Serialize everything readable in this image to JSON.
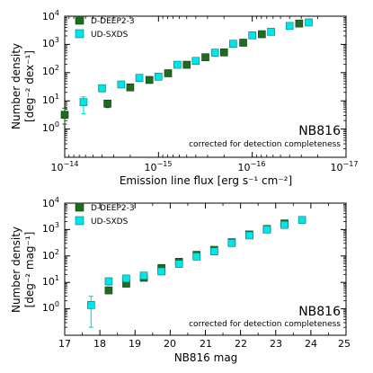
{
  "chart_data": [
    {
      "type": "scatter",
      "xlabel": "Emission line flux [erg s⁻¹ cm⁻²]",
      "ylabel_line1": "Number density",
      "ylabel_line2": "[deg⁻² dex⁻¹]",
      "xscale": "log",
      "yscale": "log",
      "xaxis_reversed": true,
      "xlim": [
        1e-14,
        1e-17
      ],
      "ylim": [
        0.1,
        10000
      ],
      "xticks": [
        {
          "value": 1e-14,
          "base": "10",
          "exp": "−14"
        },
        {
          "value": 1e-15,
          "base": "10",
          "exp": "−15"
        },
        {
          "value": 1e-16,
          "base": "10",
          "exp": "−16"
        },
        {
          "value": 1e-17,
          "base": "10",
          "exp": "−17"
        }
      ],
      "yticks": [
        {
          "value": 1,
          "base": "10",
          "exp": "0"
        },
        {
          "value": 10,
          "base": "10",
          "exp": "1"
        },
        {
          "value": 100,
          "base": "10",
          "exp": "2"
        },
        {
          "value": 1000,
          "base": "10",
          "exp": "3"
        },
        {
          "value": 10000,
          "base": "10",
          "exp": "4"
        }
      ],
      "annotation_title": "NB816",
      "annotation_subtitle": "corrected for detection completeness",
      "legend_position": "top-left",
      "series": [
        {
          "name": "D-DEEP2-3",
          "marker": "square",
          "color": "#1f6b1f",
          "points": [
            {
              "x": 1e-14,
              "y": 3.2,
              "ylo": 1.5,
              "yhi": 5.5
            },
            {
              "x": 3.5e-15,
              "y": 8.0,
              "ylo": 5.8,
              "yhi": 10.5
            },
            {
              "x": 2e-15,
              "y": 30,
              "ylo": 25,
              "yhi": 36
            },
            {
              "x": 1.25e-15,
              "y": 55,
              "ylo": 48,
              "yhi": 63
            },
            {
              "x": 7.9e-16,
              "y": 95,
              "ylo": 85,
              "yhi": 106
            },
            {
              "x": 5e-16,
              "y": 190,
              "ylo": 175,
              "yhi": 205
            },
            {
              "x": 3.16e-16,
              "y": 350,
              "ylo": 330,
              "yhi": 372
            },
            {
              "x": 2e-16,
              "y": 520,
              "ylo": 495,
              "yhi": 547
            },
            {
              "x": 1.25e-16,
              "y": 1150,
              "ylo": 1100,
              "yhi": 1200
            },
            {
              "x": 7.9e-17,
              "y": 2300,
              "ylo": 2220,
              "yhi": 2380
            },
            {
              "x": 3.16e-17,
              "y": 5500,
              "ylo": 5380,
              "yhi": 5620
            }
          ]
        },
        {
          "name": "UD-SXDS",
          "marker": "square",
          "color": "#00e5e5",
          "points": [
            {
              "x": 6.3e-15,
              "y": 9.0,
              "ylo": 3.5,
              "yhi": 14
            },
            {
              "x": 4e-15,
              "y": 28,
              "ylo": 21,
              "yhi": 35
            },
            {
              "x": 2.5e-15,
              "y": 38,
              "ylo": 31,
              "yhi": 45
            },
            {
              "x": 1.6e-15,
              "y": 65,
              "ylo": 56,
              "yhi": 74
            },
            {
              "x": 1e-15,
              "y": 72,
              "ylo": 63,
              "yhi": 81
            },
            {
              "x": 6.3e-16,
              "y": 190,
              "ylo": 173,
              "yhi": 207
            },
            {
              "x": 4e-16,
              "y": 260,
              "ylo": 241,
              "yhi": 279
            },
            {
              "x": 2.5e-16,
              "y": 510,
              "ylo": 483,
              "yhi": 537
            },
            {
              "x": 1.6e-16,
              "y": 1050,
              "ylo": 1010,
              "yhi": 1090
            },
            {
              "x": 1e-16,
              "y": 2100,
              "ylo": 2040,
              "yhi": 2160
            },
            {
              "x": 6.3e-17,
              "y": 2800,
              "ylo": 2730,
              "yhi": 2870
            },
            {
              "x": 4e-17,
              "y": 4500,
              "ylo": 4400,
              "yhi": 4600
            },
            {
              "x": 2.5e-17,
              "y": 6000,
              "ylo": 5880,
              "yhi": 6120
            }
          ]
        }
      ]
    },
    {
      "type": "scatter",
      "xlabel": "NB816 mag",
      "ylabel_line1": "Number density",
      "ylabel_line2": "[deg⁻² mag⁻¹]",
      "xscale": "linear",
      "yscale": "log",
      "xaxis_reversed": false,
      "xlim": [
        17,
        25
      ],
      "ylim": [
        0.1,
        10000
      ],
      "xticks": [
        {
          "value": 17,
          "label": "17"
        },
        {
          "value": 18,
          "label": "18"
        },
        {
          "value": 19,
          "label": "19"
        },
        {
          "value": 20,
          "label": "20"
        },
        {
          "value": 21,
          "label": "21"
        },
        {
          "value": 22,
          "label": "22"
        },
        {
          "value": 23,
          "label": "23"
        },
        {
          "value": 24,
          "label": "24"
        },
        {
          "value": 25,
          "label": "25"
        }
      ],
      "yticks": [
        {
          "value": 1,
          "base": "10",
          "exp": "0"
        },
        {
          "value": 10,
          "base": "10",
          "exp": "1"
        },
        {
          "value": 100,
          "base": "10",
          "exp": "2"
        },
        {
          "value": 1000,
          "base": "10",
          "exp": "3"
        },
        {
          "value": 10000,
          "base": "10",
          "exp": "4"
        }
      ],
      "annotation_title": "NB816",
      "annotation_subtitle": "corrected for detection completeness",
      "legend_position": "top-left",
      "series": [
        {
          "name": "D-DEEP2-3",
          "marker": "square",
          "color": "#1f6b1f",
          "points": [
            {
              "x": 18.25,
              "y": 5.0,
              "ylo": 3.8,
              "yhi": 6.4
            },
            {
              "x": 18.75,
              "y": 9.0,
              "ylo": 7.4,
              "yhi": 10.8
            },
            {
              "x": 19.25,
              "y": 15,
              "ylo": 13,
              "yhi": 17
            },
            {
              "x": 19.75,
              "y": 35,
              "ylo": 31,
              "yhi": 39
            },
            {
              "x": 20.25,
              "y": 60,
              "ylo": 55,
              "yhi": 65
            },
            {
              "x": 20.75,
              "y": 110,
              "ylo": 103,
              "yhi": 117
            },
            {
              "x": 21.25,
              "y": 170,
              "ylo": 161,
              "yhi": 179
            },
            {
              "x": 21.75,
              "y": 330,
              "ylo": 318,
              "yhi": 342
            },
            {
              "x": 22.25,
              "y": 650,
              "ylo": 632,
              "yhi": 668
            },
            {
              "x": 22.75,
              "y": 1050,
              "ylo": 1025,
              "yhi": 1075
            },
            {
              "x": 23.25,
              "y": 1700,
              "ylo": 1670,
              "yhi": 1730
            }
          ]
        },
        {
          "name": "UD-SXDS",
          "marker": "square",
          "color": "#00e5e5",
          "points": [
            {
              "x": 17.75,
              "y": 1.4,
              "ylo": 0.2,
              "yhi": 3.0
            },
            {
              "x": 18.25,
              "y": 11,
              "ylo": 8,
              "yhi": 14
            },
            {
              "x": 18.75,
              "y": 14,
              "ylo": 11,
              "yhi": 17
            },
            {
              "x": 19.25,
              "y": 18,
              "ylo": 15,
              "yhi": 21
            },
            {
              "x": 19.75,
              "y": 26,
              "ylo": 23,
              "yhi": 29
            },
            {
              "x": 20.25,
              "y": 50,
              "ylo": 45,
              "yhi": 55
            },
            {
              "x": 20.75,
              "y": 95,
              "ylo": 88,
              "yhi": 102
            },
            {
              "x": 21.25,
              "y": 150,
              "ylo": 141,
              "yhi": 159
            },
            {
              "x": 21.75,
              "y": 310,
              "ylo": 297,
              "yhi": 323
            },
            {
              "x": 22.25,
              "y": 600,
              "ylo": 582,
              "yhi": 618
            },
            {
              "x": 22.75,
              "y": 1000,
              "ylo": 975,
              "yhi": 1025
            },
            {
              "x": 23.25,
              "y": 1500,
              "ylo": 1470,
              "yhi": 1530
            },
            {
              "x": 23.75,
              "y": 2300,
              "ylo": 2260,
              "yhi": 2340
            }
          ]
        }
      ]
    }
  ]
}
